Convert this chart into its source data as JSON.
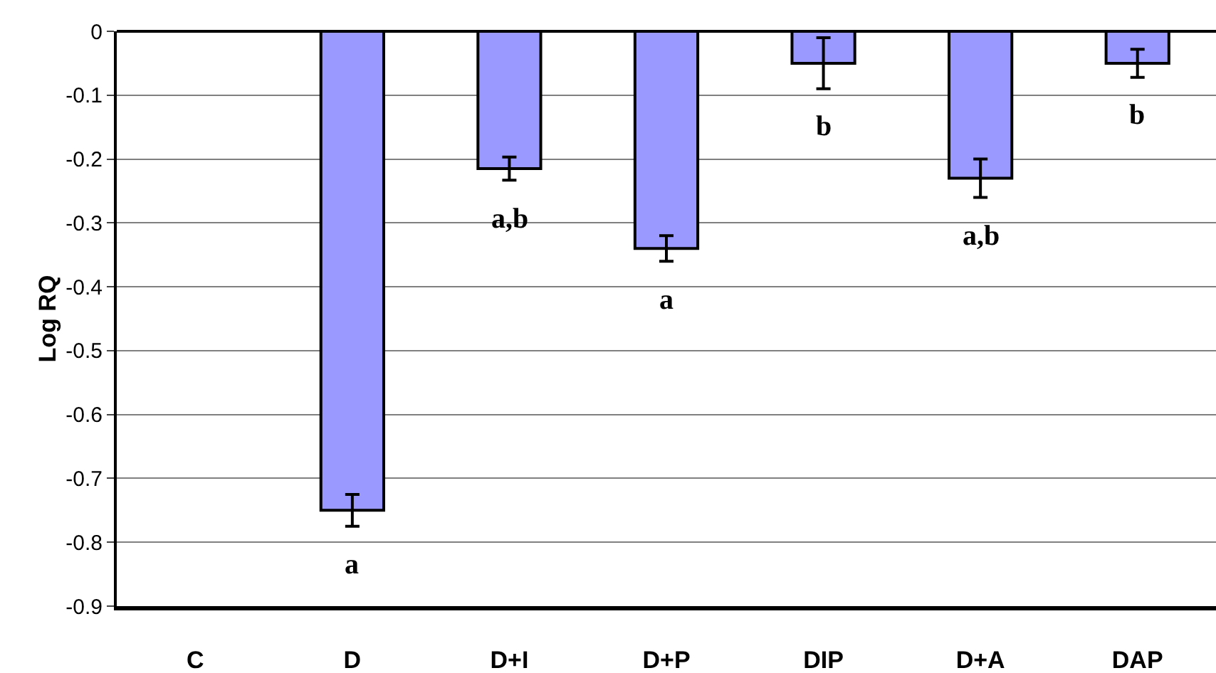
{
  "chart_data": {
    "type": "bar",
    "ylabel": "Log RQ",
    "categories": [
      "C",
      "D",
      "D+I",
      "D+P",
      "DIP",
      "D+A",
      "DAP"
    ],
    "values": [
      0,
      -0.75,
      -0.215,
      -0.34,
      -0.05,
      -0.23,
      -0.05
    ],
    "errors": [
      null,
      0.025,
      0.018,
      0.02,
      0.04,
      0.03,
      0.022
    ],
    "color": "#9999ff",
    "ylim": [
      -0.9,
      0
    ],
    "yticks": [
      0,
      -0.1,
      -0.2,
      -0.3,
      -0.4,
      -0.5,
      -0.6,
      -0.7,
      -0.8,
      -0.9
    ],
    "grid": "y",
    "annotations": [
      "a",
      "a,b",
      "a",
      "b",
      "a,b",
      "b"
    ]
  }
}
